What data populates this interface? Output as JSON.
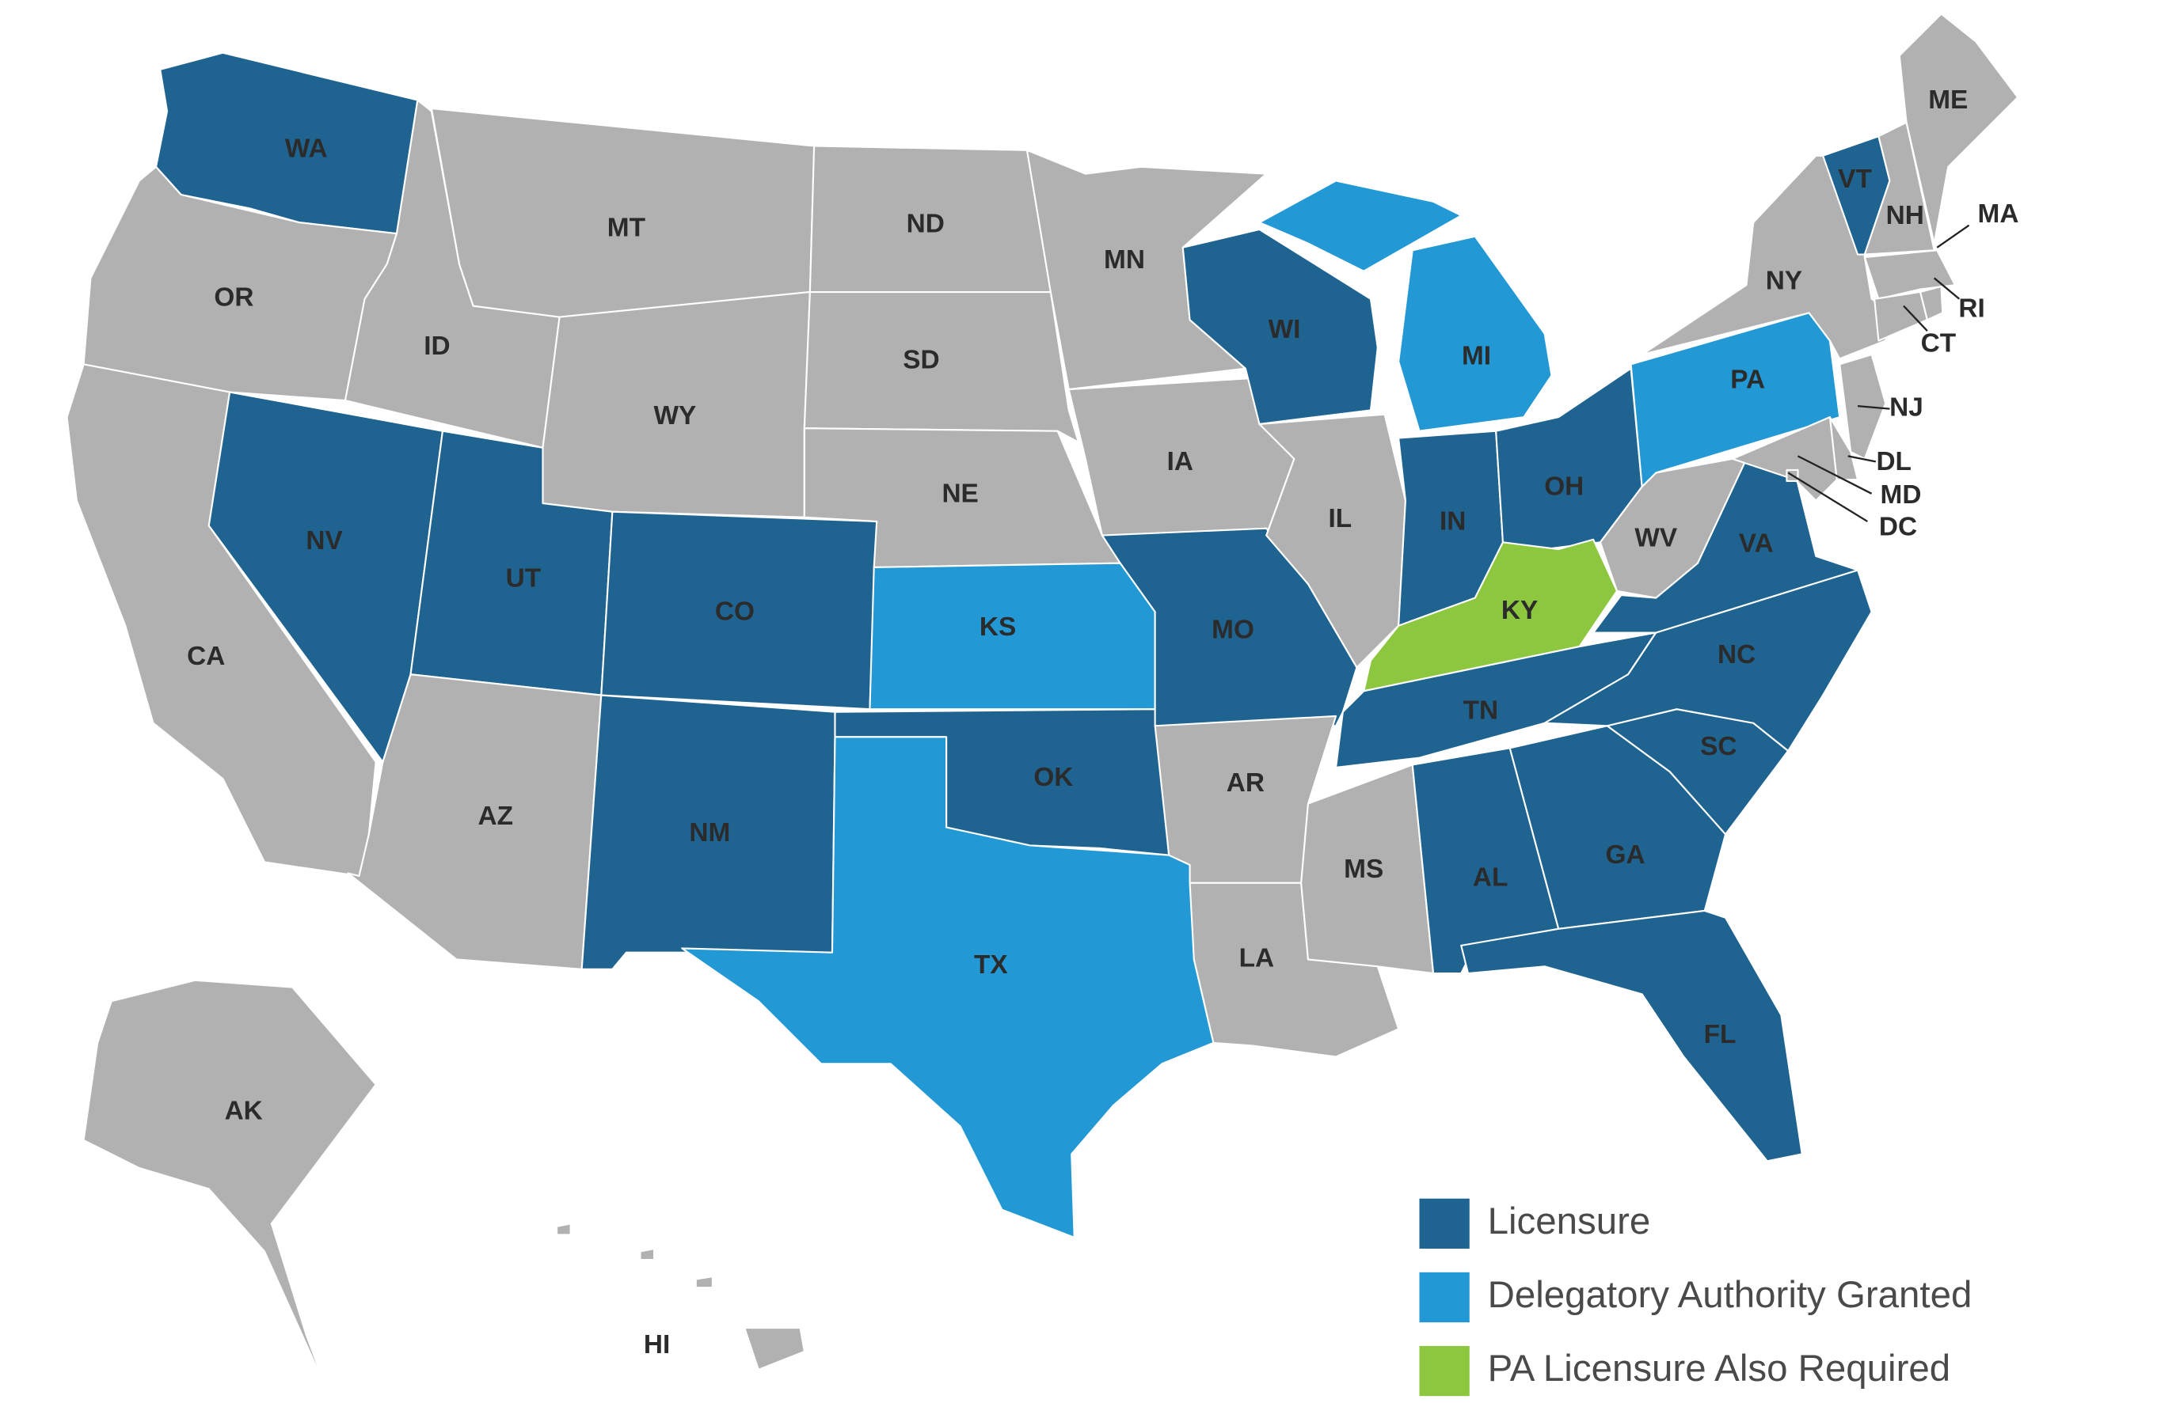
{
  "map": {
    "states": [
      {
        "label": "WA",
        "color": "#1f6391"
      },
      {
        "label": "OR",
        "color": "#b1b1b1"
      },
      {
        "label": "CA",
        "color": "#b1b1b1"
      },
      {
        "label": "NV",
        "color": "#1f6391"
      },
      {
        "label": "ID",
        "color": "#b1b1b1"
      },
      {
        "label": "MT",
        "color": "#b1b1b1"
      },
      {
        "label": "WY",
        "color": "#b1b1b1"
      },
      {
        "label": "UT",
        "color": "#1f6391"
      },
      {
        "label": "CO",
        "color": "#1f6391"
      },
      {
        "label": "AZ",
        "color": "#b1b1b1"
      },
      {
        "label": "NM",
        "color": "#1f6391"
      },
      {
        "label": "ND",
        "color": "#b1b1b1"
      },
      {
        "label": "SD",
        "color": "#b1b1b1"
      },
      {
        "label": "NE",
        "color": "#b1b1b1"
      },
      {
        "label": "KS",
        "color": "#2298d5"
      },
      {
        "label": "OK",
        "color": "#1f6391"
      },
      {
        "label": "TX",
        "color": "#2298d5"
      },
      {
        "label": "MN",
        "color": "#b1b1b1"
      },
      {
        "label": "IA",
        "color": "#b1b1b1"
      },
      {
        "label": "MO",
        "color": "#1f6391"
      },
      {
        "label": "AR",
        "color": "#b1b1b1"
      },
      {
        "label": "LA",
        "color": "#b1b1b1"
      },
      {
        "label": "WI",
        "color": "#1f6391"
      },
      {
        "label": "IL",
        "color": "#b1b1b1"
      },
      {
        "label": "MI",
        "color": "#2298d5"
      },
      {
        "label": "IN",
        "color": "#1f6391"
      },
      {
        "label": "OH",
        "color": "#1f6391"
      },
      {
        "label": "KY",
        "color": "#8dc63f"
      },
      {
        "label": "TN",
        "color": "#1f6391"
      },
      {
        "label": "MS",
        "color": "#b1b1b1"
      },
      {
        "label": "AL",
        "color": "#1f6391"
      },
      {
        "label": "GA",
        "color": "#1f6391"
      },
      {
        "label": "FL",
        "color": "#1f6391"
      },
      {
        "label": "SC",
        "color": "#1f6391"
      },
      {
        "label": "NC",
        "color": "#1f6391"
      },
      {
        "label": "VA",
        "color": "#1f6391"
      },
      {
        "label": "WV",
        "color": "#b1b1b1"
      },
      {
        "label": "PA",
        "color": "#2298d5"
      },
      {
        "label": "NY",
        "color": "#b1b1b1"
      },
      {
        "label": "VT",
        "color": "#1f6391"
      },
      {
        "label": "NH",
        "color": "#b1b1b1"
      },
      {
        "label": "ME",
        "color": "#b1b1b1"
      },
      {
        "label": "MA",
        "color": "#b1b1b1"
      },
      {
        "label": "CT",
        "color": "#b1b1b1"
      },
      {
        "label": "RI",
        "color": "#b1b1b1"
      },
      {
        "label": "NJ",
        "color": "#b1b1b1"
      },
      {
        "label": "DL",
        "color": "#b1b1b1"
      },
      {
        "label": "MD",
        "color": "#b1b1b1"
      },
      {
        "label": "DC",
        "color": "#b1b1b1"
      },
      {
        "label": "AK",
        "color": "#b1b1b1"
      },
      {
        "label": "HI",
        "color": "#b1b1b1"
      }
    ],
    "legend": [
      {
        "label": "Licensure",
        "color": "#1f6391"
      },
      {
        "label": "Delegatory Authority Granted",
        "color": "#2298d5"
      },
      {
        "label": "PA Licensure Also Required",
        "color": "#8dc63f"
      }
    ]
  }
}
